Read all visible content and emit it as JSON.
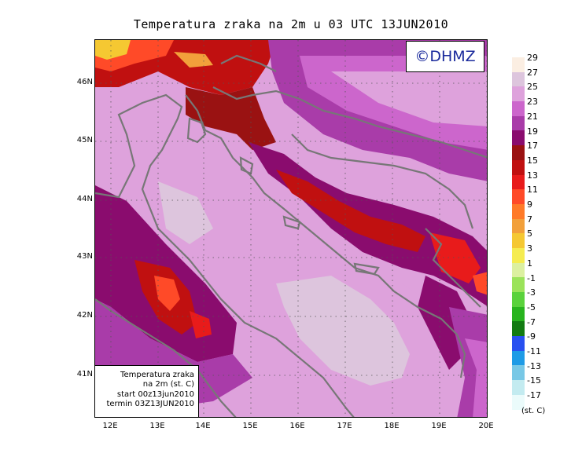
{
  "title": "Temperatura zraka na 2m u 03 UTC 13JUN2010",
  "logo": "©DHMZ",
  "info": {
    "line1": "Temperatura zraka",
    "line2": "na 2m (st. C)",
    "line3": "start 00z13jun2010",
    "line4": "termin 03Z13JUN2010"
  },
  "lat_labels": [
    "46N",
    "45N",
    "44N",
    "43N",
    "42N",
    "41N"
  ],
  "lon_labels": [
    "12E",
    "13E",
    "14E",
    "15E",
    "16E",
    "17E",
    "18E",
    "19E",
    "20E"
  ],
  "colorbar": {
    "unit": "(st. C)",
    "labels": [
      "29",
      "27",
      "25",
      "23",
      "21",
      "19",
      "17",
      "15",
      "13",
      "11",
      "9",
      "7",
      "5",
      "3",
      "1",
      "-1",
      "-3",
      "-5",
      "-7",
      "-9",
      "-11",
      "-13",
      "-15",
      "-17"
    ],
    "colors": [
      "#fbeee2",
      "#ddc5dd",
      "#dea2dc",
      "#cc66cc",
      "#a93ca9",
      "#8a0c6e",
      "#9a1212",
      "#c01010",
      "#e81b1b",
      "#ff4a28",
      "#ff7a28",
      "#f2a03b",
      "#f5c832",
      "#f5ec50",
      "#dcf0a0",
      "#9be35a",
      "#5ad23c",
      "#28b41e",
      "#127b12",
      "#2850f0",
      "#1e9be6",
      "#78c8e6",
      "#c3ebf0",
      "#ebfbfb"
    ]
  },
  "field_colors": {
    "base": "#dea2dc",
    "level23": "#cc66cc",
    "level21": "#a93ca9",
    "level19": "#8a0c6e",
    "level17": "#9a1212",
    "level15": "#c01010",
    "level13": "#e81b1b",
    "level11": "#ff4a28",
    "level7": "#f2a03b",
    "level5": "#f5c832",
    "level27": "#ddc5dd",
    "coast": "#777777"
  }
}
